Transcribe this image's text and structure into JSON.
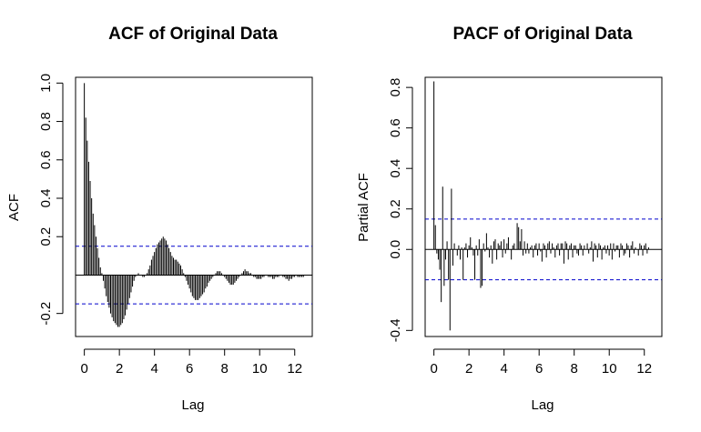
{
  "chart_data": [
    {
      "type": "bar",
      "title": "ACF of Original Data",
      "xlabel": "Lag",
      "ylabel": "ACF",
      "xlim": [
        -0.5,
        13.0
      ],
      "ylim": [
        -0.32,
        1.03
      ],
      "xticks": [
        "0",
        "2",
        "4",
        "6",
        "8",
        "10",
        "12"
      ],
      "yticks": [
        "-0.2",
        "0.2",
        "0.4",
        "0.6",
        "0.8",
        "1.0"
      ],
      "ci": [
        0.15,
        -0.15
      ],
      "lag_step": 0.0833,
      "values": [
        1.0,
        0.82,
        0.7,
        0.59,
        0.49,
        0.4,
        0.32,
        0.26,
        0.2,
        0.14,
        0.09,
        0.04,
        0.01,
        -0.03,
        -0.07,
        -0.11,
        -0.14,
        -0.17,
        -0.2,
        -0.22,
        -0.24,
        -0.25,
        -0.26,
        -0.27,
        -0.27,
        -0.26,
        -0.25,
        -0.23,
        -0.21,
        -0.18,
        -0.15,
        -0.12,
        -0.09,
        -0.06,
        -0.03,
        -0.01,
        0.0,
        0.01,
        0.0,
        0.0,
        -0.01,
        -0.01,
        0.0,
        0.01,
        0.03,
        0.05,
        0.08,
        0.1,
        0.12,
        0.14,
        0.16,
        0.17,
        0.18,
        0.19,
        0.2,
        0.19,
        0.18,
        0.16,
        0.14,
        0.12,
        0.1,
        0.09,
        0.08,
        0.08,
        0.07,
        0.06,
        0.05,
        0.03,
        0.01,
        -0.01,
        -0.03,
        -0.05,
        -0.07,
        -0.09,
        -0.11,
        -0.12,
        -0.13,
        -0.13,
        -0.13,
        -0.12,
        -0.11,
        -0.1,
        -0.09,
        -0.07,
        -0.06,
        -0.04,
        -0.03,
        -0.02,
        -0.01,
        0.0,
        0.01,
        0.02,
        0.02,
        0.02,
        0.01,
        0.0,
        -0.01,
        -0.02,
        -0.03,
        -0.04,
        -0.05,
        -0.05,
        -0.05,
        -0.04,
        -0.03,
        -0.02,
        -0.01,
        0.0,
        0.01,
        0.02,
        0.03,
        0.02,
        0.02,
        0.01,
        0.01,
        0.0,
        -0.01,
        -0.01,
        -0.02,
        -0.02,
        -0.02,
        -0.02,
        -0.01,
        -0.01,
        0.0,
        0.0,
        -0.01,
        -0.01,
        -0.01,
        -0.02,
        -0.02,
        -0.01,
        -0.01,
        -0.01,
        0.0,
        0.0,
        -0.01,
        -0.01,
        -0.02,
        -0.02,
        -0.03,
        -0.02,
        -0.02,
        -0.01,
        -0.01,
        0.0,
        -0.01,
        -0.01,
        -0.01,
        -0.01,
        -0.01
      ]
    },
    {
      "type": "bar",
      "title": "PACF of Original Data",
      "xlabel": "Lag",
      "ylabel": "Partial ACF",
      "xlim": [
        -0.5,
        13.0
      ],
      "ylim": [
        -0.43,
        0.85
      ],
      "xticks": [
        "0",
        "2",
        "4",
        "6",
        "8",
        "10",
        "12"
      ],
      "yticks": [
        "-0.4",
        "0.0",
        "0.2",
        "0.4",
        "0.6",
        "0.8"
      ],
      "ci": [
        0.15,
        -0.15
      ],
      "lag_step": 0.0833,
      "values": [
        0.83,
        0.12,
        -0.02,
        -0.05,
        -0.1,
        -0.26,
        0.31,
        -0.18,
        -0.05,
        0.04,
        -0.15,
        -0.4,
        0.3,
        -0.08,
        0.03,
        0.0,
        -0.03,
        0.02,
        -0.05,
        0.01,
        -0.15,
        0.01,
        0.03,
        -0.04,
        0.02,
        0.06,
        0.01,
        -0.03,
        -0.15,
        0.02,
        -0.03,
        0.05,
        -0.19,
        -0.18,
        0.03,
        -0.01,
        0.08,
        0.01,
        -0.04,
        0.02,
        -0.07,
        0.04,
        0.05,
        -0.05,
        0.03,
        0.02,
        0.04,
        -0.04,
        0.05,
        -0.02,
        0.03,
        0.06,
        0.0,
        -0.05,
        0.02,
        0.03,
        0.0,
        0.13,
        0.11,
        0.04,
        0.1,
        -0.03,
        0.04,
        -0.02,
        0.03,
        -0.02,
        0.01,
        0.02,
        -0.04,
        0.02,
        0.03,
        -0.03,
        0.03,
        -0.01,
        -0.06,
        0.03,
        0.02,
        -0.04,
        0.03,
        0.04,
        -0.02,
        0.03,
        0.01,
        -0.04,
        0.02,
        0.03,
        -0.03,
        0.03,
        0.03,
        -0.07,
        0.04,
        0.03,
        -0.05,
        0.02,
        0.03,
        -0.04,
        0.02,
        0.02,
        -0.02,
        -0.03,
        0.03,
        0.02,
        -0.03,
        0.02,
        0.0,
        0.03,
        -0.02,
        0.01,
        0.04,
        -0.06,
        0.03,
        0.02,
        -0.04,
        0.03,
        0.02,
        -0.05,
        0.01,
        0.02,
        -0.02,
        0.02,
        -0.03,
        0.03,
        -0.05,
        0.03,
        -0.01,
        0.02,
        0.02,
        -0.04,
        0.03,
        0.02,
        -0.03,
        -0.02,
        0.03,
        0.02,
        -0.04,
        0.02,
        0.04,
        -0.02,
        0.01,
        0.0,
        -0.03,
        0.03,
        0.02,
        -0.03,
        0.02,
        0.03,
        -0.02,
        0.01,
        0.0
      ]
    }
  ]
}
